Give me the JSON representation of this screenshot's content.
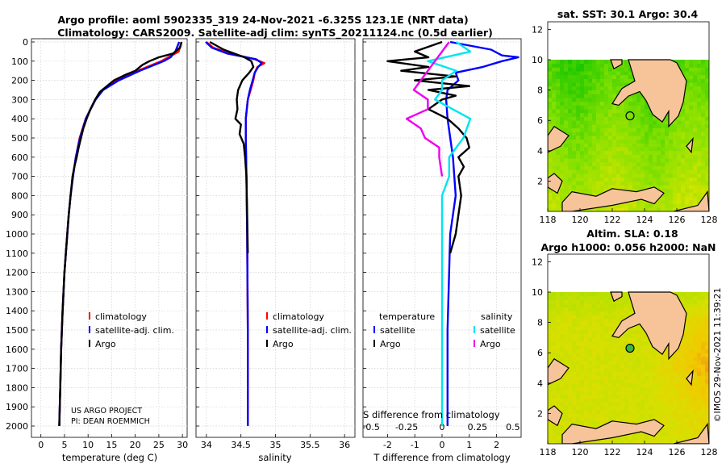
{
  "title": {
    "line1": "Argo profile: aoml 5902335_319 24-Nov-2021 -6.325S 123.1E (NRT data)",
    "line2": "Climatology: CARS2009. Satellite-adj clim: synTS_20211124.nc (0.5d earlier)"
  },
  "credit": "©IMOS 29-Nov-2021 11:39:21",
  "colors": {
    "climatology": "#ff0000",
    "satellite": "#0000ff",
    "argo": "#000000",
    "sat_salinity": "#00e5ee",
    "argo_salinity": "#ee00ee",
    "land": "#f7c49a"
  },
  "chart_data": [
    {
      "type": "line",
      "name": "temperature-profile",
      "xlabel": "temperature (deg C)",
      "ylabel": "depth",
      "xlim": [
        -2,
        31
      ],
      "ylim": [
        2050,
        0
      ],
      "xticks": [
        0,
        5,
        10,
        15,
        20,
        25,
        30
      ],
      "yticks": [
        0,
        100,
        200,
        300,
        400,
        500,
        600,
        700,
        800,
        900,
        1000,
        1100,
        1200,
        1300,
        1400,
        1500,
        1600,
        1700,
        1800,
        1900,
        2000
      ],
      "legend": [
        "climatology",
        "satellite-adj. clim.",
        "Argo"
      ],
      "annotation": [
        "US ARGO PROJECT",
        "PI: DEAN ROEMMICH"
      ],
      "series": [
        {
          "name": "climatology",
          "color": "red",
          "depth": [
            0,
            50,
            80,
            100,
            150,
            200,
            250,
            300,
            400,
            500,
            600,
            700,
            800,
            900,
            1000,
            1200,
            1400,
            1600,
            1800,
            2000
          ],
          "values": [
            29.8,
            29.2,
            27.0,
            25.5,
            20.5,
            16.0,
            13.0,
            11.5,
            9.5,
            8.2,
            7.4,
            6.8,
            6.3,
            5.9,
            5.6,
            5.0,
            4.6,
            4.3,
            4.1,
            3.9
          ]
        },
        {
          "name": "satellite-adj. clim.",
          "color": "blue",
          "depth": [
            0,
            50,
            80,
            100,
            150,
            200,
            250,
            300,
            400,
            500,
            600,
            700,
            800,
            900,
            1000,
            1200,
            1400,
            1600,
            1800,
            2000
          ],
          "values": [
            29.3,
            28.5,
            27.5,
            26.0,
            21.0,
            16.5,
            13.2,
            11.6,
            9.5,
            8.3,
            7.4,
            6.8,
            6.3,
            5.9,
            5.6,
            5.0,
            4.6,
            4.3,
            4.1,
            3.9
          ]
        },
        {
          "name": "Argo",
          "color": "black",
          "depth": [
            0,
            30,
            60,
            80,
            100,
            120,
            150,
            170,
            200,
            230,
            260,
            300,
            350,
            400,
            450,
            500,
            550,
            600,
            650,
            700,
            800,
            900,
            1000,
            1200,
            1400,
            1600,
            1800,
            2000
          ],
          "values": [
            29.8,
            29.5,
            28.0,
            25.0,
            23.0,
            21.5,
            20.0,
            18.0,
            15.5,
            14.0,
            12.5,
            11.5,
            10.5,
            9.7,
            9.0,
            8.5,
            8.0,
            7.6,
            7.1,
            6.7,
            6.3,
            5.9,
            5.6,
            5.0,
            4.6,
            4.3,
            4.1,
            3.9
          ]
        }
      ]
    },
    {
      "type": "line",
      "name": "salinity-profile",
      "xlabel": "salinity",
      "ylim": [
        2050,
        0
      ],
      "xlim": [
        33.85,
        36.15
      ],
      "xticks": [
        34,
        34.5,
        35,
        35.5,
        36
      ],
      "xticklabels": [
        "34",
        "34.5",
        "35",
        "35.5",
        "36"
      ],
      "legend": [
        "climatology",
        "satellite-adj. clim.",
        "Argo"
      ],
      "series": [
        {
          "name": "climatology",
          "color": "red",
          "depth": [
            0,
            30,
            60,
            90,
            110,
            130,
            160,
            200,
            250,
            300,
            400,
            500,
            700,
            1000,
            1500,
            2000
          ],
          "values": [
            34.0,
            34.1,
            34.35,
            34.7,
            34.84,
            34.74,
            34.7,
            34.68,
            34.64,
            34.6,
            34.57,
            34.57,
            34.58,
            34.59,
            34.6,
            34.6
          ]
        },
        {
          "name": "satellite-adj. clim.",
          "color": "blue",
          "depth": [
            0,
            30,
            60,
            90,
            110,
            130,
            160,
            200,
            250,
            300,
            400,
            500,
            700,
            1000,
            1500,
            2000
          ],
          "values": [
            33.99,
            34.08,
            34.3,
            34.72,
            34.8,
            34.75,
            34.7,
            34.67,
            34.63,
            34.6,
            34.57,
            34.57,
            34.58,
            34.59,
            34.6,
            34.6
          ]
        },
        {
          "name": "Argo",
          "color": "black",
          "depth": [
            0,
            40,
            80,
            100,
            130,
            160,
            200,
            250,
            300,
            350,
            400,
            430,
            480,
            530,
            600,
            700,
            900,
            1100
          ],
          "values": [
            34.05,
            34.25,
            34.55,
            34.65,
            34.68,
            34.62,
            34.52,
            34.46,
            34.44,
            34.45,
            34.42,
            34.5,
            34.48,
            34.54,
            34.56,
            34.58,
            34.59,
            34.6
          ]
        }
      ]
    },
    {
      "type": "line",
      "name": "difference-profile",
      "xlabel": "T difference from climatology",
      "xlabel2": "S difference from climatology",
      "xlim": [
        -2.9,
        2.9
      ],
      "ylim": [
        2050,
        0
      ],
      "xticks": [
        -2,
        -1,
        0,
        1,
        2
      ],
      "xticks2": [
        -0.5,
        -0.25,
        0,
        0.25,
        0.5
      ],
      "xticklabels2": [
        "-0.5",
        "-0.25",
        "0",
        "0.25",
        "0.5"
      ],
      "legend_temperature_title": "temperature",
      "legend_salinity_title": "salinity",
      "legend_temperature": [
        "satellite",
        "Argo"
      ],
      "legend_salinity": [
        "satellite",
        "Argo"
      ],
      "series": [
        {
          "name": "temperature satellite",
          "color": "blue",
          "depth": [
            0,
            40,
            70,
            80,
            100,
            130,
            160,
            200,
            250,
            300,
            400,
            600,
            800,
            1000,
            1500,
            2000
          ],
          "values": [
            0.3,
            1.8,
            2.2,
            2.8,
            2.2,
            1.5,
            0.5,
            0.6,
            0.2,
            0.15,
            0.2,
            0.4,
            0.5,
            0.3,
            0.2,
            0.2
          ]
        },
        {
          "name": "temperature Argo",
          "color": "black",
          "depth": [
            0,
            50,
            80,
            100,
            130,
            150,
            180,
            200,
            230,
            250,
            280,
            300,
            350,
            400,
            450,
            500,
            550,
            600,
            650,
            700,
            800,
            900,
            1000,
            1100
          ],
          "values": [
            0.0,
            -1.0,
            -0.5,
            -2.0,
            -0.5,
            -1.5,
            0.5,
            -1.0,
            1.0,
            -0.5,
            0.5,
            0.0,
            -0.5,
            0.2,
            0.6,
            0.9,
            1.0,
            0.6,
            0.8,
            0.6,
            0.7,
            0.6,
            0.5,
            0.3
          ]
        },
        {
          "name": "salinity satellite",
          "color": "cyan",
          "depth": [
            0,
            50,
            100,
            150,
            200,
            250,
            300,
            400,
            500,
            600,
            700,
            800,
            1000,
            1500,
            2000
          ],
          "values": [
            0.1,
            0.2,
            -0.1,
            0.1,
            0.0,
            0.0,
            -0.05,
            0.2,
            0.15,
            0.05,
            0.05,
            0.0,
            0.0,
            0.0,
            0.0
          ]
        },
        {
          "name": "salinity Argo",
          "color": "magenta",
          "depth": [
            0,
            50,
            100,
            150,
            200,
            250,
            300,
            350,
            400,
            450,
            500,
            550,
            600,
            650,
            700
          ],
          "values": [
            0.05,
            0.0,
            -0.05,
            -0.1,
            -0.15,
            -0.2,
            -0.1,
            -0.1,
            -0.25,
            -0.15,
            -0.12,
            -0.02,
            -0.02,
            -0.01,
            0.0
          ]
        }
      ]
    },
    {
      "type": "heatmap",
      "name": "sst-map",
      "title": "sat. SST: 30.1 Argo: 30.4",
      "xlim": [
        118,
        128
      ],
      "ylim": [
        0,
        12.5
      ],
      "xticks": [
        118,
        120,
        122,
        124,
        126,
        128
      ],
      "yticks": [
        2,
        4,
        6,
        8,
        10,
        12
      ],
      "float_position": {
        "lon": 123.1,
        "lat": 6.3
      }
    },
    {
      "type": "heatmap",
      "name": "sla-map",
      "title1": "Altim. SLA: 0.18",
      "title2": "Argo h1000: 0.056 h2000: NaN",
      "xlim": [
        118,
        128
      ],
      "ylim": [
        0,
        12.5
      ],
      "xticks": [
        118,
        120,
        122,
        124,
        126,
        128
      ],
      "yticks": [
        2,
        4,
        6,
        8,
        10,
        12
      ],
      "float_position": {
        "lon": 123.1,
        "lat": 6.3
      }
    }
  ]
}
